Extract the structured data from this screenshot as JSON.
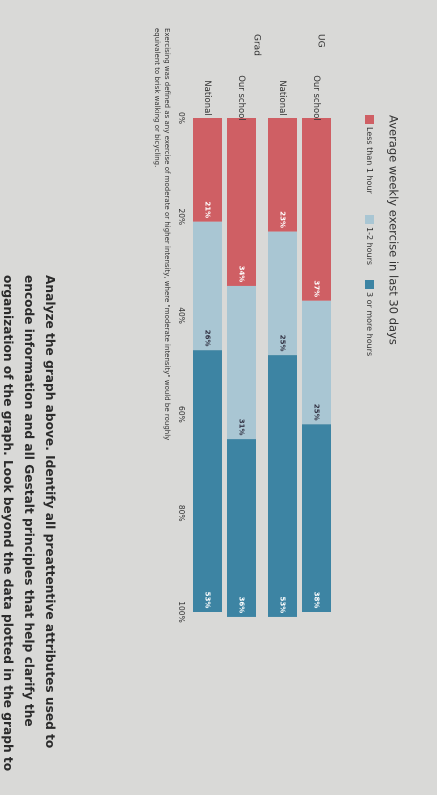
{
  "chart_data": {
    "type": "bar",
    "orientation": "horizontal stacked",
    "title": "Average weekly exercise in last 30 days",
    "groups": [
      "UG",
      "Grad"
    ],
    "categories": [
      {
        "group": "UG",
        "label": "Our school"
      },
      {
        "group": "UG",
        "label": "National"
      },
      {
        "group": "Grad",
        "label": "Our school"
      },
      {
        "group": "Grad",
        "label": "National"
      }
    ],
    "series": [
      {
        "name": "Less than 1 hour",
        "color": "#cf5f64",
        "values": [
          37,
          23,
          34,
          21
        ],
        "labels": [
          "37%",
          "23%",
          "34%",
          "21%"
        ]
      },
      {
        "name": "1-2 hours",
        "color": "#a9c6d3",
        "values": [
          25,
          25,
          31,
          26
        ],
        "labels": [
          "25%",
          "25%",
          "31%",
          "26%"
        ]
      },
      {
        "name": "3 or more hours",
        "color": "#3d84a3",
        "values": [
          38,
          53,
          36,
          53
        ],
        "labels": [
          "38%",
          "53%",
          "36%",
          "53%"
        ]
      }
    ],
    "xlim": [
      0,
      100
    ],
    "xticks": [
      "0%",
      "20%",
      "40%",
      "60%",
      "80%",
      "100%"
    ],
    "legend_position": "top",
    "footnote": "Exercising was defined as any exercise of moderate or higher intensity, where \"moderate intensity\" would be roughly equivalent to brisk walking or bicycling."
  },
  "instructions": "Analyze the graph above. Identify all preattentive attributes used to encode information and all Gestalt principles that help clarify the organization of the graph. Look beyond the data plotted in the graph to see all the ways the designers tried to help lower the cognitive load on the reader. Remember that the same principle can be used multiple times in different ways. In the text box below, (1) identify each preattentive attribute and Gestalt principle and (2) explain how it is applied in the graph."
}
